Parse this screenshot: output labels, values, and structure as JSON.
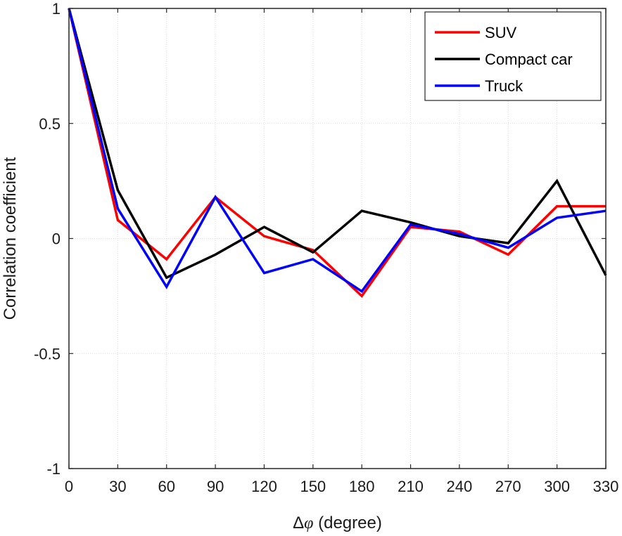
{
  "chart_data": {
    "type": "line",
    "title": "",
    "xlabel": "Δφ (degree)",
    "xlabel_prefix": "Δ",
    "xlabel_symbol": "φ",
    "xlabel_suffix": " (degree)",
    "ylabel": "Correlation coefficient",
    "xlim": [
      0,
      330
    ],
    "ylim": [
      -1,
      1
    ],
    "grid": true,
    "legend_position": "top-right",
    "x": [
      0,
      30,
      60,
      90,
      120,
      150,
      180,
      210,
      240,
      270,
      300,
      330
    ],
    "x_tick_labels": [
      "0",
      "30",
      "60",
      "90",
      "120",
      "150",
      "180",
      "210",
      "240",
      "270",
      "300",
      "330"
    ],
    "y_ticks": [
      -1,
      -0.5,
      0,
      0.5,
      1
    ],
    "y_tick_labels": [
      "-1",
      "-0.5",
      "0",
      "0.5",
      "1"
    ],
    "series": [
      {
        "name": "SUV",
        "color": "#ff0000",
        "values": [
          1.0,
          0.08,
          -0.09,
          0.18,
          0.01,
          -0.05,
          -0.25,
          0.05,
          0.03,
          -0.07,
          0.14,
          0.14
        ]
      },
      {
        "name": "Compact car",
        "color": "#000000",
        "values": [
          1.0,
          0.21,
          -0.17,
          -0.07,
          0.05,
          -0.06,
          0.12,
          0.07,
          0.01,
          -0.02,
          0.25,
          -0.16
        ]
      },
      {
        "name": "Truck",
        "color": "#0000ff",
        "values": [
          1.0,
          0.13,
          -0.21,
          0.18,
          -0.15,
          -0.09,
          -0.23,
          0.06,
          0.02,
          -0.04,
          0.09,
          0.12
        ]
      }
    ]
  }
}
